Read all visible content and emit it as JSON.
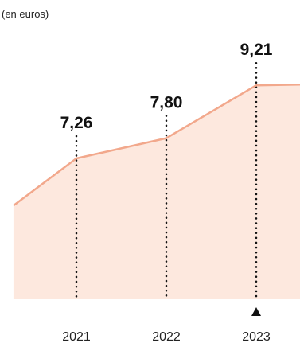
{
  "chart_data": {
    "type": "area",
    "unit_note": "(en euros)",
    "categories": [
      "2021",
      "2022",
      "2023"
    ],
    "x": [
      2020.3,
      2021,
      2022,
      2023,
      2023.5
    ],
    "y": [
      6.0,
      7.26,
      7.8,
      9.21,
      9.23
    ],
    "labeled_points": [
      {
        "x": "2021",
        "value": 7.26,
        "label": "7,26"
      },
      {
        "x": "2022",
        "value": 7.8,
        "label": "7,80"
      },
      {
        "x": "2023",
        "value": 9.21,
        "label": "9,21"
      }
    ],
    "highlight_marker": "up-triangle-icon",
    "highlight_category": "2023",
    "ylim": [
      3.5,
      10
    ],
    "grid": false,
    "colors": {
      "line": "#f2a88c",
      "fill": "#fde8de",
      "text": "#111111"
    }
  }
}
